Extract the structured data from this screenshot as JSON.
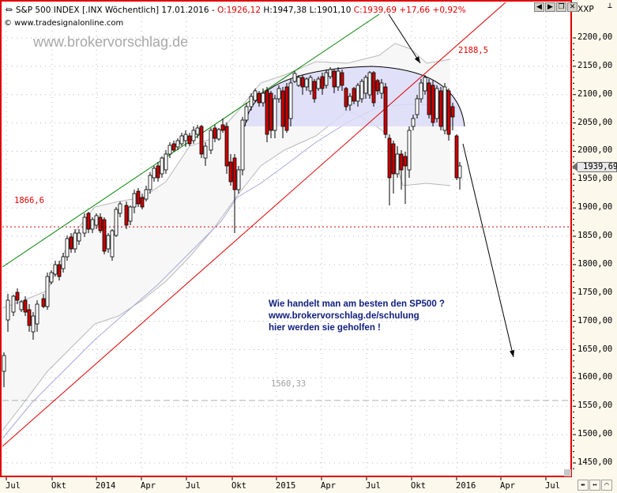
{
  "header": {
    "symbol_icon": "candlestick-icon",
    "title_prefix": "S&P 500 INDEX [.INX  Wöchentlich] 17.01.2016 - ",
    "open": "O:1926,12",
    "high_low": " H:1947,38 L:1901,10 ",
    "close_change": "C:1939,69 +17,66 +0,92%",
    "copyright": "© www.tradesignalonline.com",
    "watermark": "www.brokervorschlag.de",
    "window_buttons": [
      {
        "name": "prev-arrow-icon",
        "glyph": "◀"
      },
      {
        "name": "next-arrow-icon",
        "glyph": "▶"
      },
      {
        "name": "restore-icon",
        "glyph": "❐"
      },
      {
        "name": "close-icon",
        "glyph": "✕"
      }
    ]
  },
  "axis_right": {
    "label": "XXP",
    "pin_glyph": "⊥",
    "last_price": "1939,69",
    "ticks": [
      "2200,00",
      "2150,00",
      "2100,00",
      "2050,00",
      "2000,00",
      "1950,00",
      "1900,00",
      "1850,00",
      "1800,00",
      "1750,00",
      "1700,00",
      "1650,00",
      "1600,00",
      "1550,00",
      "1500,00",
      "1450,00"
    ],
    "nav_buttons": [
      {
        "name": "scroll-horizontal-icon",
        "glyph": "⇹"
      },
      {
        "name": "stretch-horizontal-icon",
        "glyph": "↔"
      },
      {
        "name": "autoscale-icon",
        "glyph": "⌒"
      }
    ]
  },
  "axis_bottom": {
    "ticks": [
      "Jul",
      "Okt",
      "2014",
      "Apr",
      "Jul",
      "Okt",
      "2015",
      "Apr",
      "Jul",
      "Okt",
      "2016",
      "Apr",
      "Jul"
    ]
  },
  "annotations": {
    "resistance_label": "2188,5",
    "support_label": "1866,6",
    "target_label": "1560,33",
    "text_lines": [
      "Wie handelt man am besten den SP500 ?",
      "www.brokervorschlag.de/schulung",
      "hier werden sie geholfen !"
    ]
  },
  "colors": {
    "frame": "#e00000",
    "up_candle": "#ffffff",
    "down_candle": "#cc0000",
    "channel_upper": "#008000",
    "channel_lower": "#e00000",
    "top_zone": "#dcdcf8",
    "bollinger": "#b8b8b8",
    "moving_average": "#a0a0d8",
    "annotation_text": "#102080"
  },
  "chart_data": {
    "type": "candlestick",
    "title": "S&P 500 INDEX [.INX Wöchentlich] 17.01.2016",
    "interval": "weekly",
    "last_bar": {
      "date": "17.01.2016",
      "open": 1926.12,
      "high": 1947.38,
      "low": 1901.1,
      "close": 1939.69,
      "change": 17.66,
      "change_pct": 0.92
    },
    "ylim": [
      1430,
      2240
    ],
    "yticks": [
      1450,
      1500,
      1550,
      1600,
      1650,
      1700,
      1750,
      1800,
      1850,
      1900,
      1950,
      2000,
      2050,
      2100,
      2150,
      2200
    ],
    "xticks": [
      "Jul",
      "Okt",
      "2014",
      "Apr",
      "Jul",
      "Okt",
      "2015",
      "Apr",
      "Jul",
      "Okt",
      "2016",
      "Apr",
      "Jul"
    ],
    "xrange": "Jun 2013 – Aug 2016",
    "grid": true,
    "horizontal_lines": [
      {
        "value": 1866.6,
        "label": "1866,6",
        "style": "red dotted"
      },
      {
        "value": 1560.33,
        "label": "1560,33",
        "style": "grey dashed"
      }
    ],
    "trendlines": [
      {
        "name": "upper channel",
        "color": "green",
        "from": {
          "x": "Jun 2013",
          "y": 1760
        },
        "to": {
          "x": "Jun 2015",
          "y": 2230
        }
      },
      {
        "name": "lower channel",
        "color": "red",
        "from": {
          "x": "Jun 2013",
          "y": 1473
        },
        "to": {
          "x": "Jul 2016",
          "y": 2240
        },
        "label": "2188,5"
      }
    ],
    "zones": [
      {
        "name": "rounding top",
        "from_x": "Dez 2014",
        "to_x": "Jan 2016",
        "ymin": 2020,
        "ymax": 2140
      }
    ],
    "arrows": [
      {
        "from": {
          "x": "Jul 2015",
          "y": 2230
        },
        "to": {
          "x": "Okt 2015",
          "y": 2145
        }
      },
      {
        "from": {
          "x": "Jan 2016",
          "y": 2000
        },
        "to": {
          "x": "Mrz 2016",
          "y": 1610
        }
      }
    ],
    "closes_approx": [
      {
        "date": "Jul 2013",
        "close": 1690
      },
      {
        "date": "Okt 2013",
        "close": 1700
      },
      {
        "date": "Jan 2014",
        "close": 1840
      },
      {
        "date": "Apr 2014",
        "close": 1865
      },
      {
        "date": "Jul 2014",
        "close": 1980
      },
      {
        "date": "Okt 2014",
        "close": 1900
      },
      {
        "date": "Jan 2015",
        "close": 2050
      },
      {
        "date": "Apr 2015",
        "close": 2100
      },
      {
        "date": "Jul 2015",
        "close": 2100
      },
      {
        "date": "Sep 2015",
        "close": 1930
      },
      {
        "date": "Nov 2015",
        "close": 2090
      },
      {
        "date": "Dez 2015",
        "close": 2040
      },
      {
        "date": "Jan 2016",
        "close": 1940
      }
    ]
  }
}
